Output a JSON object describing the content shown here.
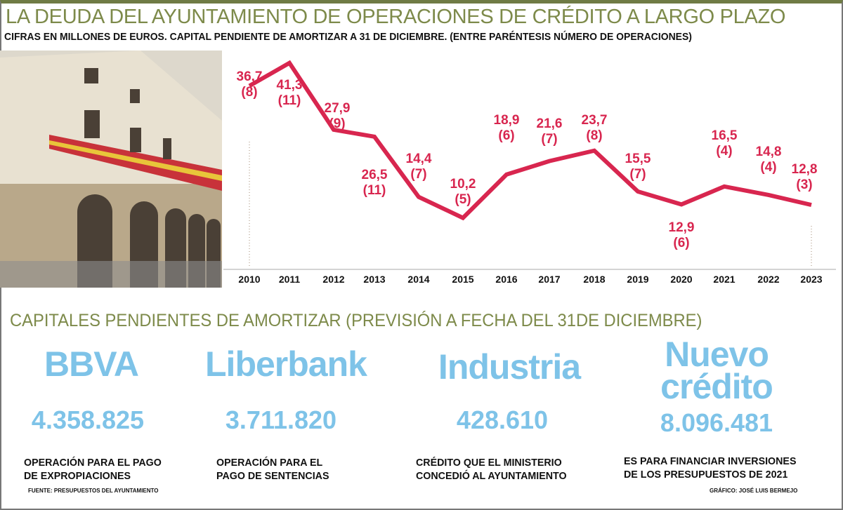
{
  "header": {
    "title": "LA DEUDA DEL AYUNTAMIENTO DE OPERACIONES DE CRÉDITO A LARGO PLAZO",
    "subtitle": "CIFRAS EN MILLONES DE EUROS.  CAPITAL PENDIENTE DE AMORTIZAR A 31 DE DICIEMBRE.  (ENTRE PARÉNTESIS  NÚMERO DE OPERACIONES)"
  },
  "chart_data": {
    "type": "line",
    "line_color": "#d8264f",
    "x": [
      "2010",
      "2011",
      "2012",
      "2013",
      "2014",
      "2015",
      "2016",
      "2017",
      "2018",
      "2019",
      "2020",
      "2021",
      "2022",
      "2023"
    ],
    "values": [
      36.7,
      41.3,
      27.9,
      26.5,
      14.4,
      10.2,
      18.9,
      21.6,
      23.7,
      15.5,
      12.9,
      16.5,
      14.8,
      12.8
    ],
    "value_labels": [
      "36,7",
      "41,3",
      "27,9",
      "26,5",
      "14,4",
      "10,2",
      "18,9",
      "21,6",
      "23,7",
      "15,5",
      "12,9",
      "16,5",
      "14,8",
      "12,8"
    ],
    "operations": [
      "(8)",
      "(11)",
      "(9)",
      "(11)",
      "(7)",
      "(5)",
      "(6)",
      "(7)",
      "(8)",
      "(7)",
      "(6)",
      "(4)",
      "(4)",
      "(3)"
    ]
  },
  "section2": {
    "title": "CAPITALES PENDIENTES DE AMORTIZAR (PREVISIÓN A FECHA DEL 31DE DICIEMBRE)",
    "accent": "#7ec3e8",
    "entities": [
      {
        "name": "BBVA",
        "amount": "4.358.825",
        "desc1": "OPERACIÓN PARA EL PAGO",
        "desc2": "DE EXPROPIACIONES"
      },
      {
        "name": "Liberbank",
        "amount": "3.711.820",
        "desc1": "OPERACIÓN PARA EL",
        "desc2": "PAGO DE SENTENCIAS"
      },
      {
        "name": "Industria",
        "amount": "428.610",
        "desc1": "CRÉDITO QUE EL MINISTERIO",
        "desc2": "CONCEDIÓ AL AYUNTAMIENTO"
      },
      {
        "name": "Nuevo",
        "name2": "crédito",
        "amount": "8.096.481",
        "desc1": "ES PARA FINANCIAR INVERSIONES",
        "desc2": "DE LOS PRESUPUESTOS DE 2021"
      }
    ]
  },
  "footer": {
    "source": "FUENTE: PRESUPUESTOS DEL AYUNTAMIENTO",
    "credit": "GRÁFICO:  JOSÉ LUIS BERMEJO"
  }
}
